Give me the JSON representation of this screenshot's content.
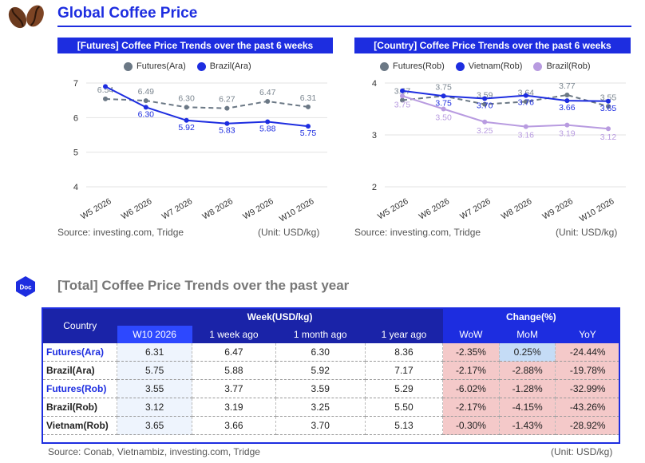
{
  "header": {
    "title": "Global Coffee Price"
  },
  "charts": {
    "left": {
      "banner": "[Futures] Coffee Price Trends over the past 6 weeks",
      "source": "Source: investing.com, Tridge",
      "unit": "(Unit: USD/kg)"
    },
    "right": {
      "banner": "[Country] Coffee Price Trends over the past 6 weeks",
      "source": "Source: investing.com, Tridge",
      "unit": "(Unit: USD/kg)"
    }
  },
  "chart_data": [
    {
      "type": "line",
      "title": "[Futures] Coffee Price Trends over the past 6 weeks",
      "x": [
        "W5 2026",
        "W6 2026",
        "W7 2026",
        "W8 2026",
        "W9 2026",
        "W10 2026"
      ],
      "ylim": [
        4,
        7
      ],
      "yticks": [
        4,
        5,
        6,
        7
      ],
      "grid": true,
      "legend": "top",
      "series": [
        {
          "name": "Futures(Ara)",
          "color": "#6b7885",
          "dash": true,
          "values": [
            6.54,
            6.49,
            6.3,
            6.27,
            6.47,
            6.31
          ],
          "labels": [
            "6.54",
            "6.49",
            "6.30",
            "6.27",
            "6.47",
            "6.31"
          ]
        },
        {
          "name": "Brazil(Ara)",
          "color": "#1d2de0",
          "dash": false,
          "values": [
            6.9,
            6.3,
            5.92,
            5.83,
            5.88,
            5.75
          ],
          "labels": [
            "",
            "6.30",
            "5.92",
            "5.83",
            "5.88",
            "5.75"
          ]
        }
      ]
    },
    {
      "type": "line",
      "title": "[Country] Coffee Price Trends over the past 6 weeks",
      "x": [
        "W5 2026",
        "W6 2026",
        "W7 2026",
        "W8 2026",
        "W9 2026",
        "W10 2026"
      ],
      "ylim": [
        2,
        4
      ],
      "yticks": [
        2,
        3,
        4
      ],
      "grid": true,
      "legend": "top",
      "series": [
        {
          "name": "Futures(Rob)",
          "color": "#6b7885",
          "dash": true,
          "values": [
            3.67,
            3.75,
            3.59,
            3.64,
            3.77,
            3.55
          ],
          "labels": [
            "3.67",
            "3.75",
            "3.59",
            "3.64",
            "3.77",
            "3.55"
          ]
        },
        {
          "name": "Vietnam(Rob)",
          "color": "#1d2de0",
          "dash": false,
          "values": [
            3.85,
            3.75,
            3.7,
            3.76,
            3.66,
            3.65
          ],
          "labels": [
            "",
            "3.75",
            "3.70",
            "3.76",
            "3.66",
            "3.65"
          ]
        },
        {
          "name": "Brazil(Rob)",
          "color": "#b89be0",
          "dash": false,
          "values": [
            3.75,
            3.5,
            3.25,
            3.16,
            3.19,
            3.12
          ],
          "labels": [
            "3.75",
            "3.50",
            "3.25",
            "3.16",
            "3.19",
            "3.12"
          ]
        }
      ]
    }
  ],
  "total": {
    "badge": "Doc",
    "title": "[Total] Coffee Price Trends over the past year",
    "week_header": "Week(USD/kg)",
    "change_header": "Change(%)",
    "col_country": "Country",
    "columns": [
      "W10 2026",
      "1 week ago",
      "1 month ago",
      "1 year ago",
      "WoW",
      "MoM",
      "YoY"
    ],
    "rows": [
      {
        "country": "Futures(Ara)",
        "values": [
          "6.31",
          "6.47",
          "6.30",
          "8.36"
        ],
        "changes": [
          "-2.35%",
          "0.25%",
          "-24.44%"
        ]
      },
      {
        "country": "Brazil(Ara)",
        "values": [
          "5.75",
          "5.88",
          "5.92",
          "7.17"
        ],
        "changes": [
          "-2.17%",
          "-2.88%",
          "-19.78%"
        ]
      },
      {
        "country": "Futures(Rob)",
        "values": [
          "3.55",
          "3.77",
          "3.59",
          "5.29"
        ],
        "changes": [
          "-6.02%",
          "-1.28%",
          "-32.99%"
        ]
      },
      {
        "country": "Brazil(Rob)",
        "values": [
          "3.12",
          "3.19",
          "3.25",
          "5.50"
        ],
        "changes": [
          "-2.17%",
          "-4.15%",
          "-43.26%"
        ]
      },
      {
        "country": "Vietnam(Rob)",
        "values": [
          "3.65",
          "3.66",
          "3.70",
          "5.13"
        ],
        "changes": [
          "-0.30%",
          "-1.43%",
          "-28.92%"
        ]
      }
    ],
    "source": "Source: Conab, Vietnambiz, investing.com, Tridge",
    "unit": "(Unit: USD/kg)"
  }
}
